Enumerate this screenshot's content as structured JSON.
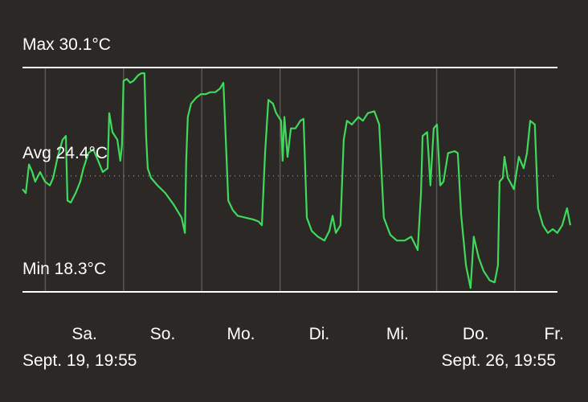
{
  "chart_data": {
    "type": "line",
    "color": "#3fd95c",
    "xlim": [
      0,
      168
    ],
    "ylim": [
      18.3,
      30.1
    ],
    "xgrid": [
      7,
      31,
      55,
      79,
      103,
      127,
      151
    ],
    "xticks": [
      {
        "value": 19,
        "label": "Sa."
      },
      {
        "value": 43,
        "label": "So."
      },
      {
        "value": 67,
        "label": "Mo."
      },
      {
        "value": 91,
        "label": "Di."
      },
      {
        "value": 115,
        "label": "Mi."
      },
      {
        "value": 139,
        "label": "Do."
      },
      {
        "value": 163,
        "label": "Fr."
      }
    ],
    "reference_lines": [
      {
        "label": "Max 30.1°C",
        "value": 30.1,
        "style": "solid"
      },
      {
        "label": "Avg 24.4°C",
        "value": 24.4,
        "style": "dotted"
      },
      {
        "label": "Min 18.3°C",
        "value": 18.3,
        "style": "solid"
      }
    ],
    "start_label": "Sept. 19, 19:55",
    "end_label": "Sept. 26, 19:55",
    "x": [
      0,
      1.0,
      2.0,
      3.0,
      3.9,
      5.4,
      6.9,
      8.4,
      9.4,
      10.8,
      12.3,
      13.3,
      13.8,
      14.8,
      16.3,
      17.7,
      18.7,
      20.2,
      21.7,
      23.2,
      24.6,
      26.1,
      26.6,
      27.6,
      29.1,
      30.0,
      30.5,
      31.0,
      32.0,
      33.0,
      34.0,
      35.5,
      36.5,
      37.4,
      37.9,
      38.4,
      39.4,
      41.4,
      43.8,
      46.3,
      48.8,
      49.8,
      50.2,
      50.7,
      51.7,
      53.2,
      54.7,
      56.2,
      57.6,
      59.1,
      60.6,
      61.6,
      62.1,
      63.1,
      64.5,
      66.0,
      68.5,
      70.9,
      72.4,
      73.4,
      74.4,
      75.4,
      76.8,
      77.8,
      79.3,
      79.8,
      80.3,
      81.3,
      82.3,
      83.7,
      85.2,
      86.2,
      87.2,
      88.7,
      90.6,
      92.6,
      94.1,
      95.1,
      96.1,
      97.5,
      98.5,
      99.5,
      101.0,
      103.0,
      104.4,
      105.9,
      107.9,
      109.4,
      110.8,
      112.8,
      114.8,
      117.2,
      119.2,
      121.2,
      122.2,
      122.7,
      124.1,
      125.1,
      126.1,
      127.1,
      128.1,
      129.1,
      130.5,
      132.5,
      133.5,
      134.5,
      136.0,
      137.4,
      138.4,
      139.9,
      141.4,
      143.3,
      144.8,
      145.8,
      146.3,
      147.3,
      147.8,
      148.8,
      150.7,
      152.2,
      153.7,
      154.7,
      155.7,
      157.1,
      158.1,
      159.6,
      161.1,
      162.6,
      164.0,
      165.5,
      167.0,
      168.0
    ],
    "values": [
      23.7,
      23.5,
      25.0,
      24.6,
      24.1,
      24.6,
      24.1,
      23.9,
      24.3,
      25.4,
      26.3,
      26.5,
      23.1,
      23.0,
      23.5,
      24.1,
      24.8,
      25.6,
      25.8,
      25.2,
      24.6,
      24.8,
      27.7,
      26.7,
      26.3,
      25.2,
      26.0,
      29.4,
      29.5,
      29.3,
      29.4,
      29.7,
      29.8,
      29.8,
      26.5,
      24.8,
      24.3,
      23.9,
      23.5,
      22.9,
      22.2,
      21.4,
      25.2,
      27.5,
      28.2,
      28.5,
      28.7,
      28.7,
      28.8,
      28.8,
      29.0,
      29.3,
      27.3,
      23.1,
      22.6,
      22.3,
      22.2,
      22.1,
      22.0,
      21.8,
      25.6,
      28.4,
      28.2,
      27.7,
      27.3,
      25.2,
      27.5,
      25.4,
      26.9,
      26.9,
      27.3,
      27.4,
      22.2,
      21.5,
      21.2,
      21.0,
      21.5,
      22.3,
      21.4,
      21.8,
      26.3,
      27.3,
      27.1,
      27.5,
      27.3,
      27.7,
      27.8,
      27.1,
      22.2,
      21.3,
      21.0,
      21.0,
      21.2,
      20.5,
      23.5,
      26.5,
      26.7,
      23.9,
      26.9,
      27.1,
      23.9,
      24.1,
      25.6,
      25.7,
      25.6,
      22.4,
      19.7,
      18.5,
      21.2,
      20.1,
      19.4,
      18.9,
      18.8,
      19.7,
      24.1,
      24.3,
      25.4,
      24.3,
      23.7,
      25.4,
      24.8,
      25.6,
      27.3,
      27.1,
      22.7,
      21.8,
      21.4,
      21.6,
      21.4,
      21.8,
      22.7,
      21.8
    ]
  }
}
